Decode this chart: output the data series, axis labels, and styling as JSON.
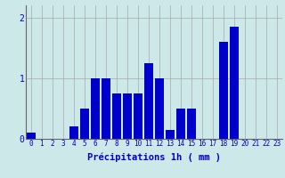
{
  "hours": [
    0,
    1,
    2,
    3,
    4,
    5,
    6,
    7,
    8,
    9,
    10,
    11,
    12,
    13,
    14,
    15,
    16,
    17,
    18,
    19,
    20,
    21,
    22,
    23
  ],
  "values": [
    0.1,
    0.0,
    0.0,
    0.0,
    0.2,
    0.5,
    1.0,
    1.0,
    0.75,
    0.75,
    0.75,
    1.25,
    1.0,
    0.15,
    0.5,
    0.5,
    0.0,
    0.0,
    1.6,
    1.85,
    0.0,
    0.0,
    0.0,
    0.0
  ],
  "bar_color": "#0000cc",
  "background_color": "#cce8e8",
  "grid_color": "#aaaaaa",
  "text_color": "#0000cc",
  "xlabel": "Précipitations 1h ( mm )",
  "ylim": [
    0,
    2.2
  ],
  "yticks": [
    0,
    1,
    2
  ],
  "xlim": [
    -0.5,
    23.5
  ]
}
